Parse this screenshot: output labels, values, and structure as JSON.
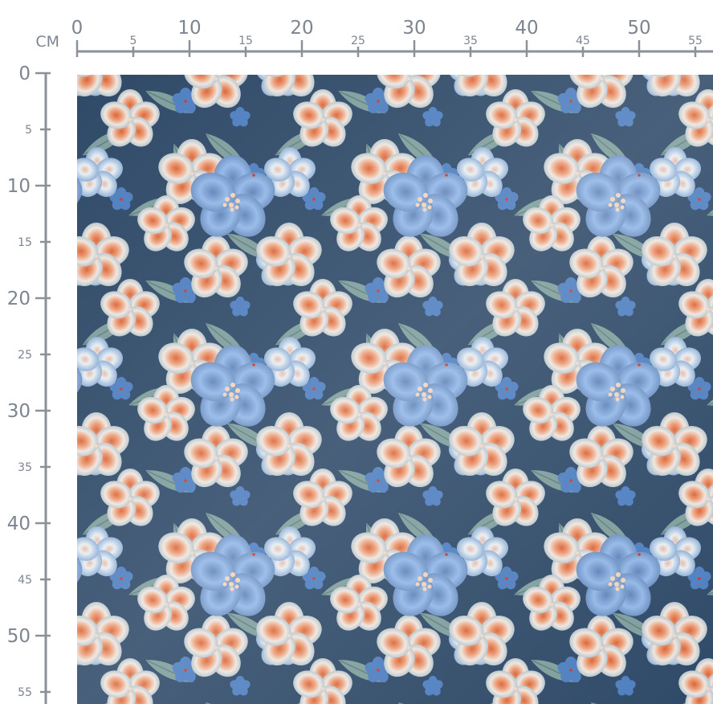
{
  "ruler": {
    "unit_label": "CM",
    "top_labels": [
      0,
      5,
      10,
      15,
      20,
      25,
      30,
      35,
      40,
      45,
      50,
      55
    ],
    "left_labels": [
      0,
      5,
      10,
      15,
      20,
      25,
      30,
      35,
      40,
      45,
      50,
      55
    ],
    "color": "#7d8590"
  },
  "fabric": {
    "colors": {
      "background": "#2f4a68",
      "leaf": "#7f9e9c",
      "blue_flower": "#8fb4e6",
      "peach_flower": "#f0e8e2",
      "peach_center": "#e07a4c",
      "stamen": "#f3d3b8"
    }
  }
}
